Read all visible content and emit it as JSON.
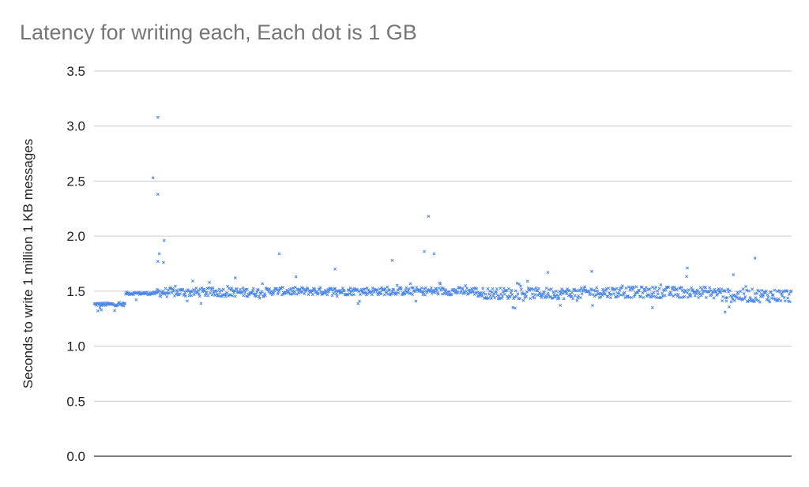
{
  "chart_data": {
    "type": "scatter",
    "title": "Latency for writing each, Each dot is 1 GB",
    "xlabel": "",
    "ylabel": "Seconds to write 1 million 1 KB messages",
    "ylim": [
      0,
      3.5
    ],
    "yticks": [
      "0.0",
      "0.5",
      "1.0",
      "1.5",
      "2.0",
      "2.5",
      "3.0",
      "3.5"
    ],
    "x_count": 1000,
    "grid": true,
    "legend": "none",
    "marker": "x",
    "color": "#4a86e8",
    "segments": [
      {
        "from": 0,
        "to": 45,
        "y": 1.38,
        "jitter": 0.015
      },
      {
        "from": 45,
        "to": 90,
        "y": 1.48,
        "jitter": 0.012
      },
      {
        "from": 90,
        "to": 250,
        "y": 1.49,
        "jitter": 0.04
      },
      {
        "from": 250,
        "to": 550,
        "y": 1.5,
        "jitter": 0.035
      },
      {
        "from": 550,
        "to": 700,
        "y": 1.48,
        "jitter": 0.05
      },
      {
        "from": 700,
        "to": 900,
        "y": 1.49,
        "jitter": 0.05
      },
      {
        "from": 900,
        "to": 1000,
        "y": 1.46,
        "jitter": 0.06
      }
    ],
    "outliers": [
      {
        "x": 5,
        "y": 1.32
      },
      {
        "x": 10,
        "y": 1.33
      },
      {
        "x": 8,
        "y": 1.35
      },
      {
        "x": 84,
        "y": 2.53
      },
      {
        "x": 91,
        "y": 3.08
      },
      {
        "x": 91,
        "y": 2.38
      },
      {
        "x": 93,
        "y": 1.84
      },
      {
        "x": 91,
        "y": 1.77
      },
      {
        "x": 100,
        "y": 1.96
      },
      {
        "x": 99,
        "y": 1.76
      },
      {
        "x": 265,
        "y": 1.84
      },
      {
        "x": 345,
        "y": 1.7
      },
      {
        "x": 427,
        "y": 1.78
      },
      {
        "x": 473,
        "y": 1.86
      },
      {
        "x": 479,
        "y": 2.18
      },
      {
        "x": 487,
        "y": 1.84
      },
      {
        "x": 202,
        "y": 1.62
      },
      {
        "x": 713,
        "y": 1.68
      },
      {
        "x": 850,
        "y": 1.71
      },
      {
        "x": 947,
        "y": 1.8
      },
      {
        "x": 916,
        "y": 1.65
      },
      {
        "x": 904,
        "y": 1.31
      },
      {
        "x": 800,
        "y": 1.35
      },
      {
        "x": 650,
        "y": 1.67
      },
      {
        "x": 668,
        "y": 1.37
      }
    ]
  }
}
